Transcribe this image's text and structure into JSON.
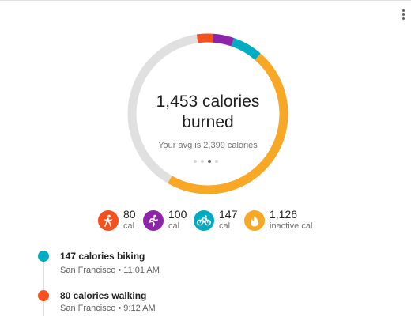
{
  "summary_card": {
    "calories_burned_line1": "1,453 calories",
    "calories_burned_line2": "burned",
    "average_text": "Your avg is 2,399 calories",
    "ring": {
      "track_color": "#e0e0e0",
      "segments": [
        {
          "activity": "walking",
          "value": 80,
          "color": "#f4511e"
        },
        {
          "activity": "running",
          "value": 100,
          "color": "#8e24aa"
        },
        {
          "activity": "biking",
          "value": 147,
          "color": "#00acc1"
        },
        {
          "activity": "inactive",
          "value": 1126,
          "color": "#f9a825"
        }
      ]
    },
    "pager": {
      "count": 4,
      "active_index": 2
    }
  },
  "activity_stats": [
    {
      "icon": "walking-icon",
      "value": "80",
      "unit": "cal",
      "color": "#f4511e"
    },
    {
      "icon": "running-icon",
      "value": "100",
      "unit": "cal",
      "color": "#8e24aa"
    },
    {
      "icon": "biking-icon",
      "value": "147",
      "unit": "cal",
      "color": "#00acc1"
    },
    {
      "icon": "flame-icon",
      "value": "1,126",
      "unit": "inactive cal",
      "color": "#f9a825"
    }
  ],
  "timeline": [
    {
      "title": "147 calories biking",
      "location_time": "San Francisco • 11:01 AM",
      "color": "#00acc1"
    },
    {
      "title": "80 calories walking",
      "location_time": "San Francisco • 9:12 AM",
      "color": "#f4511e"
    }
  ]
}
